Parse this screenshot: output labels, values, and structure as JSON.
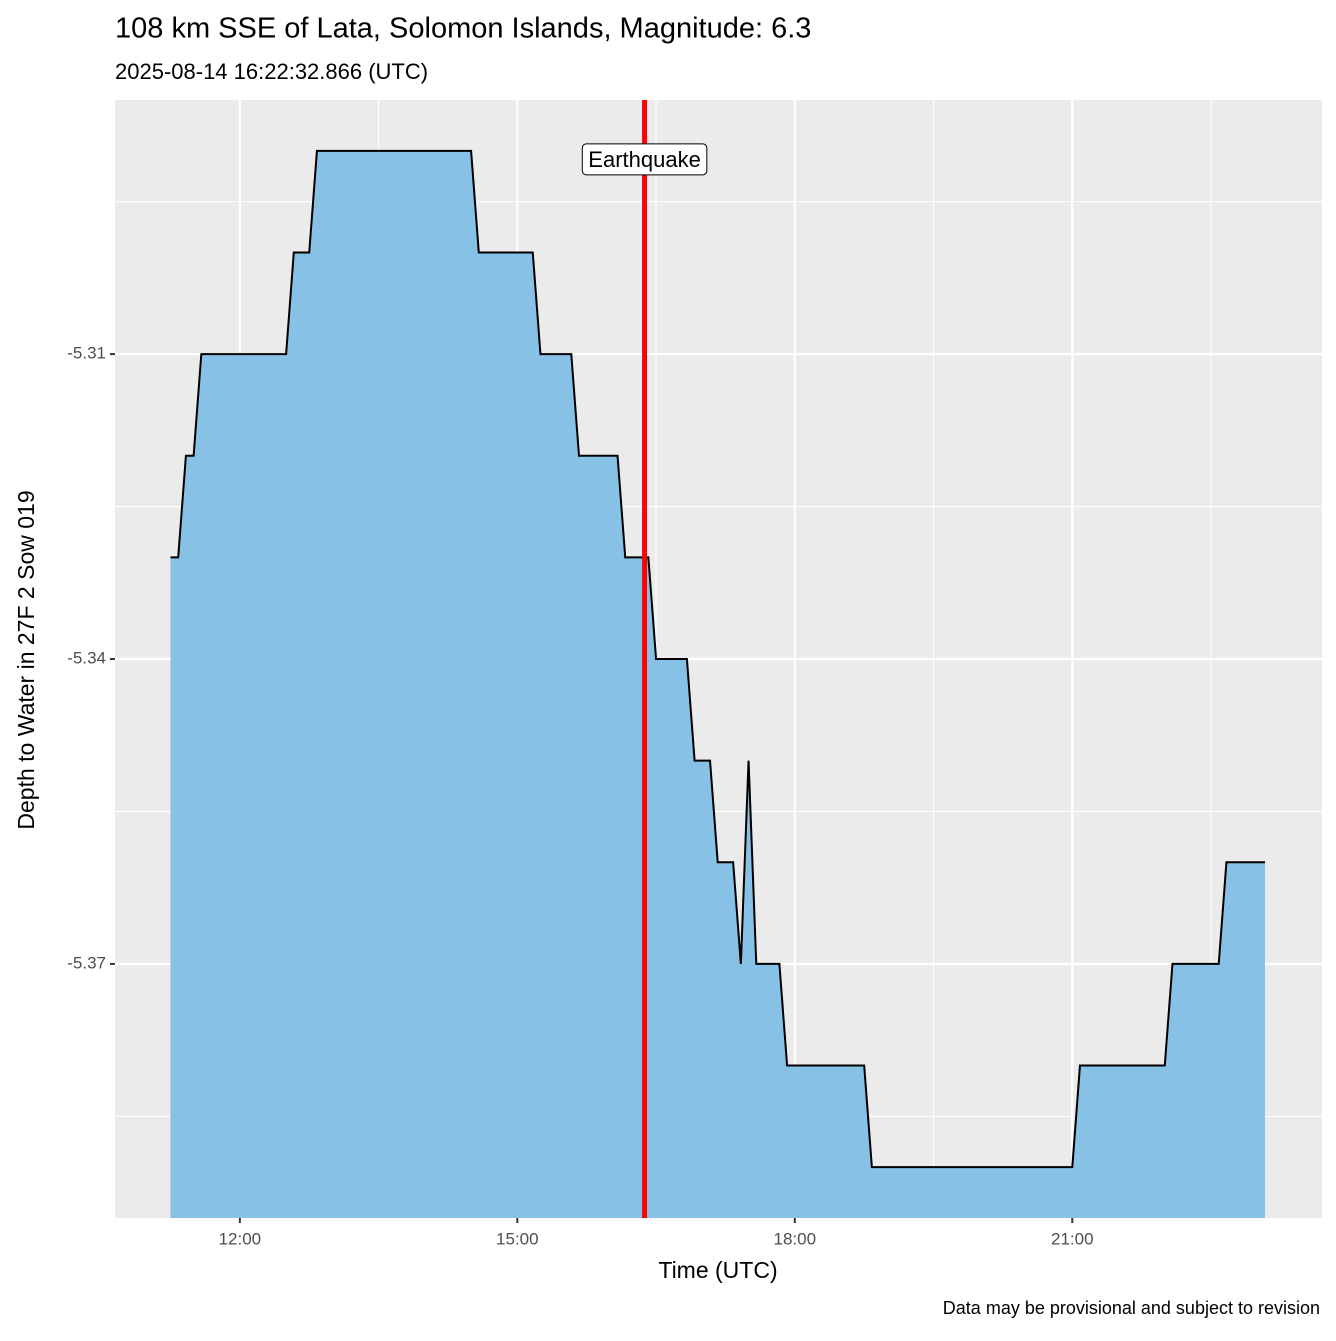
{
  "chart_data": {
    "type": "area",
    "title": "108 km SSE of Lata, Solomon Islands, Magnitude: 6.3",
    "subtitle": "2025-08-14 16:22:32.866 (UTC)",
    "x_label": "Time (UTC)",
    "y_label": "Depth to Water in 27F 2 Sow 019",
    "caption": "Data may be provisional and subject to revision",
    "x": [
      "11:15",
      "11:20",
      "11:25",
      "11:30",
      "11:35",
      "12:30",
      "12:35",
      "12:45",
      "12:50",
      "14:30",
      "14:35",
      "15:10",
      "15:15",
      "15:35",
      "15:40",
      "16:05",
      "16:10",
      "16:25",
      "16:30",
      "16:50",
      "16:55",
      "17:05",
      "17:10",
      "17:20",
      "17:25",
      "17:30",
      "17:35",
      "17:50",
      "17:55",
      "18:45",
      "18:50",
      "21:00",
      "21:05",
      "22:00",
      "22:05",
      "22:35",
      "22:40",
      "23:05"
    ],
    "values": [
      -5.33,
      -5.33,
      -5.32,
      -5.32,
      -5.31,
      -5.31,
      -5.3,
      -5.3,
      -5.29,
      -5.29,
      -5.3,
      -5.3,
      -5.31,
      -5.31,
      -5.32,
      -5.32,
      -5.33,
      -5.33,
      -5.34,
      -5.34,
      -5.35,
      -5.35,
      -5.36,
      -5.36,
      -5.37,
      -5.35,
      -5.37,
      -5.37,
      -5.38,
      -5.38,
      -5.39,
      -5.39,
      -5.38,
      -5.38,
      -5.37,
      -5.37,
      -5.36,
      -5.36
    ],
    "fill_color": "#87c1e6",
    "line_color": "#000000",
    "xlim": [
      "10:39",
      "23:42"
    ],
    "xticks": [
      "12:00",
      "15:00",
      "18:00",
      "21:00"
    ],
    "xticks_minor": [
      "13:30",
      "16:30",
      "19:30",
      "22:30"
    ],
    "ylim": [
      -5.395,
      -5.285
    ],
    "yticks": [
      -5.31,
      -5.34,
      -5.37
    ],
    "yticks_minor": [
      -5.295,
      -5.325,
      -5.355,
      -5.385
    ],
    "grid": true,
    "annotation": {
      "x": "16:22:32",
      "label": "Earthquake",
      "color": "#ff0000"
    }
  }
}
